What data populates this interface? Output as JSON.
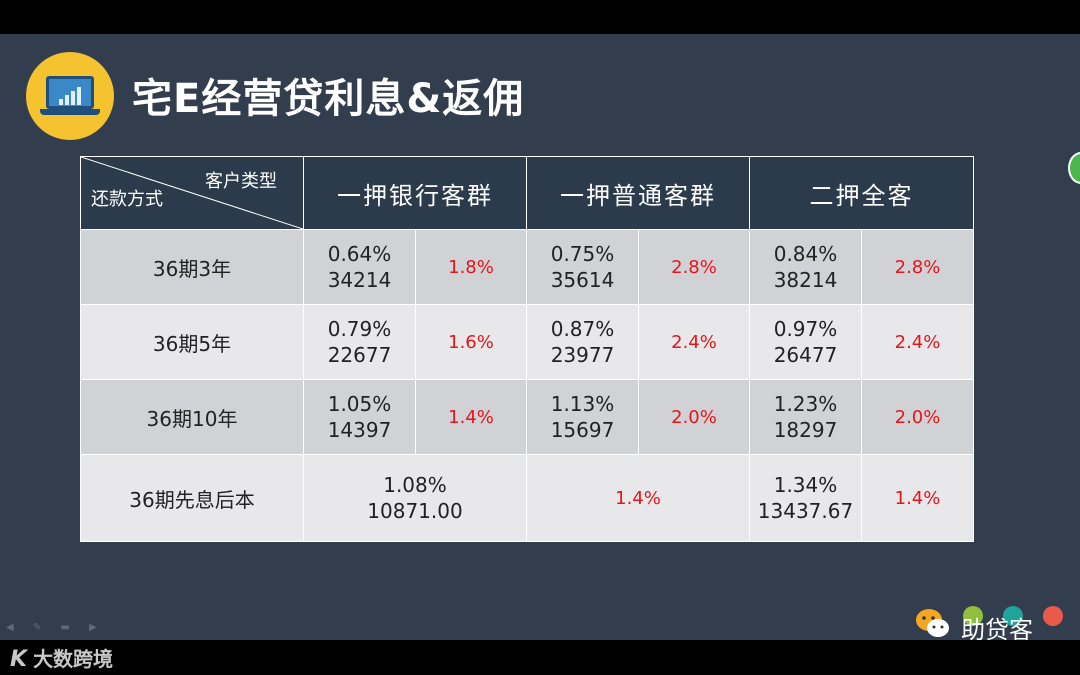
{
  "title": "宅E经营贷利息&返佣",
  "table": {
    "corner_top": "客户类型",
    "corner_bottom": "还款方式",
    "headers": [
      "一押银行客群",
      "一押普通客群",
      "二押全客"
    ],
    "rows": [
      {
        "label": "36期3年",
        "cells": [
          [
            "0.64%",
            "34214",
            "1.8%"
          ],
          [
            "0.75%",
            "35614",
            "2.8%"
          ],
          [
            "0.84%",
            "38214",
            "2.8%"
          ]
        ]
      },
      {
        "label": "36期5年",
        "cells": [
          [
            "0.79%",
            "22677",
            "1.6%"
          ],
          [
            "0.87%",
            "23977",
            "2.4%"
          ],
          [
            "0.97%",
            "26477",
            "2.4%"
          ]
        ]
      },
      {
        "label": "36期10年",
        "cells": [
          [
            "1.05%",
            "14397",
            "1.4%"
          ],
          [
            "1.13%",
            "15697",
            "2.0%"
          ],
          [
            "1.23%",
            "18297",
            "2.0%"
          ]
        ]
      },
      {
        "label": "36期先息后本",
        "merged": {
          "rate": "1.08%",
          "amount": "10871.00",
          "commission": "1.4%"
        },
        "last": [
          "1.34%",
          "13437.67",
          "1.4%"
        ]
      }
    ]
  },
  "brand": {
    "name": "助贷客"
  },
  "footer_logo": {
    "mark": "K",
    "text": "大数跨境"
  },
  "icons": [
    "laptop-chart-icon",
    "wechat-icon",
    "nav-arrows-icon"
  ],
  "colors": {
    "slide_bg": "#323e4e",
    "header_bg": "#2c3b4b",
    "accent_red": "#e8141c",
    "icon_yellow": "#f5c230"
  }
}
